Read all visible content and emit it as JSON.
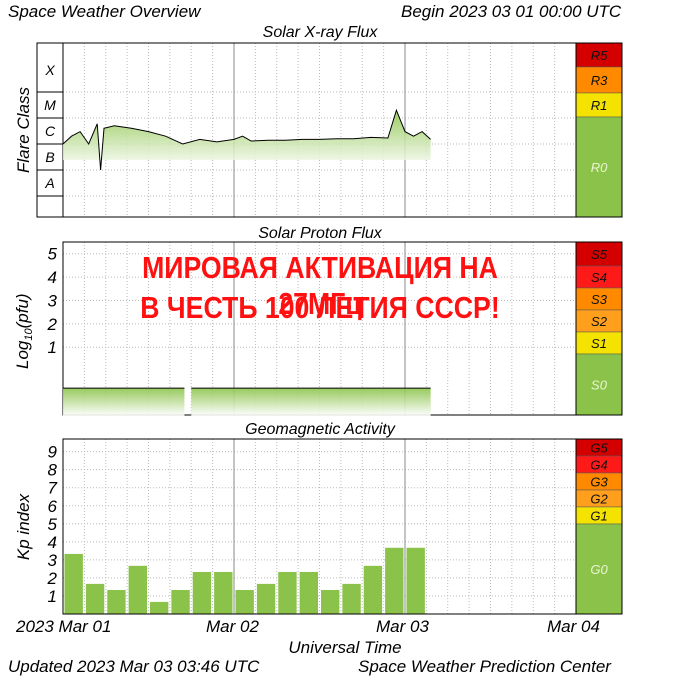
{
  "header": {
    "title": "Space Weather Overview",
    "begin": "Begin 2023 03 01 00:00 UTC"
  },
  "footer": {
    "updated": "Updated 2023 Mar 03 03:46 UTC",
    "source": "Space Weather Prediction Center"
  },
  "banner": {
    "line1": "МИРОВАЯ АКТИВАЦИЯ НА 27МГц",
    "line2": "В ЧЕСТЬ 100 ЛЕТИЯ СССР!"
  },
  "colors": {
    "green": "#8bc34a",
    "yellow": "#f4e300",
    "orange": "#ff8a00",
    "red": "#ff1a1a",
    "darkred": "#d40000",
    "banner": "#ff1111"
  },
  "chart_data": [
    {
      "type": "area",
      "title": "Solar X-ray Flux",
      "ylabel": "Flare Class",
      "y_ticks": [
        "A",
        "B",
        "C",
        "M",
        "X"
      ],
      "y_scale": "log",
      "x_ticks": [
        "2023 Mar 01",
        "Mar 02",
        "Mar 03",
        "Mar 04"
      ],
      "x": [
        0.0,
        0.05,
        0.1,
        0.15,
        0.2,
        0.22,
        0.24,
        0.3,
        0.4,
        0.5,
        0.6,
        0.7,
        0.8,
        0.9,
        1.0,
        1.05,
        1.1,
        1.2,
        1.3,
        1.4,
        1.5,
        1.6,
        1.7,
        1.8,
        1.9,
        1.95,
        2.0,
        2.05,
        2.1,
        2.15
      ],
      "values": [
        "C1",
        "C2",
        "C3",
        "C1",
        "C6",
        "B1",
        "C4",
        "C5",
        "C4",
        "C3",
        "C2",
        "C1",
        "C1.5",
        "C1.2",
        "C1.5",
        "C2",
        "C1.3",
        "C1.4",
        "C1.4",
        "C1.5",
        "C1.5",
        "C1.6",
        "C1.6",
        "C1.8",
        "C1.7",
        "M2",
        "C3",
        "C2",
        "C3",
        "C1.5"
      ],
      "scale_labels": [
        {
          "label": "R5",
          "color": "#d40000"
        },
        {
          "label": "R3",
          "color": "#ff8a00"
        },
        {
          "label": "R1",
          "color": "#f4e300"
        },
        {
          "label": "R0",
          "color": "#8bc34a"
        }
      ]
    },
    {
      "type": "area",
      "title": "Solar Proton Flux",
      "ylabel": "Log10(pfu)",
      "ylabel_main": "Log",
      "ylabel_sub": "10",
      "ylabel_tail": "(pfu)",
      "y_ticks": [
        "1",
        "2",
        "3",
        "4",
        "5"
      ],
      "ylim": [
        -1.9,
        5.5
      ],
      "x_ticks": [
        "2023 Mar 01",
        "Mar 02",
        "Mar 03",
        "Mar 04"
      ],
      "x": [
        0.0,
        2.15
      ],
      "values": [
        -0.75,
        -0.75
      ],
      "gap": [
        0.71,
        0.75
      ],
      "scale_labels": [
        {
          "label": "S5",
          "color": "#d40000"
        },
        {
          "label": "S4",
          "color": "#ff1a1a"
        },
        {
          "label": "S3",
          "color": "#ff8a00"
        },
        {
          "label": "S2",
          "color": "#ff9f1c"
        },
        {
          "label": "S1",
          "color": "#f4e300"
        },
        {
          "label": "S0",
          "color": "#8bc34a"
        }
      ]
    },
    {
      "type": "bar",
      "title": "Geomagnetic Activity",
      "ylabel": "Kp index",
      "y_ticks": [
        "1",
        "2",
        "3",
        "4",
        "5",
        "6",
        "7",
        "8",
        "9"
      ],
      "ylim": [
        0,
        9.7
      ],
      "x_ticks": [
        "2023 Mar 01",
        "Mar 02",
        "Mar 03",
        "Mar 04"
      ],
      "xlabel": "Universal Time",
      "values": [
        3.33,
        1.67,
        1.33,
        2.67,
        0.67,
        1.33,
        2.33,
        2.33,
        1.33,
        1.67,
        2.33,
        2.33,
        1.33,
        1.67,
        2.67,
        3.67,
        3.67
      ],
      "scale_labels": [
        {
          "label": "G5",
          "color": "#d40000"
        },
        {
          "label": "G4",
          "color": "#ff1a1a"
        },
        {
          "label": "G3",
          "color": "#ff8a00"
        },
        {
          "label": "G2",
          "color": "#ff9f1c"
        },
        {
          "label": "G1",
          "color": "#f4e300"
        },
        {
          "label": "G0",
          "color": "#8bc34a"
        }
      ]
    }
  ]
}
